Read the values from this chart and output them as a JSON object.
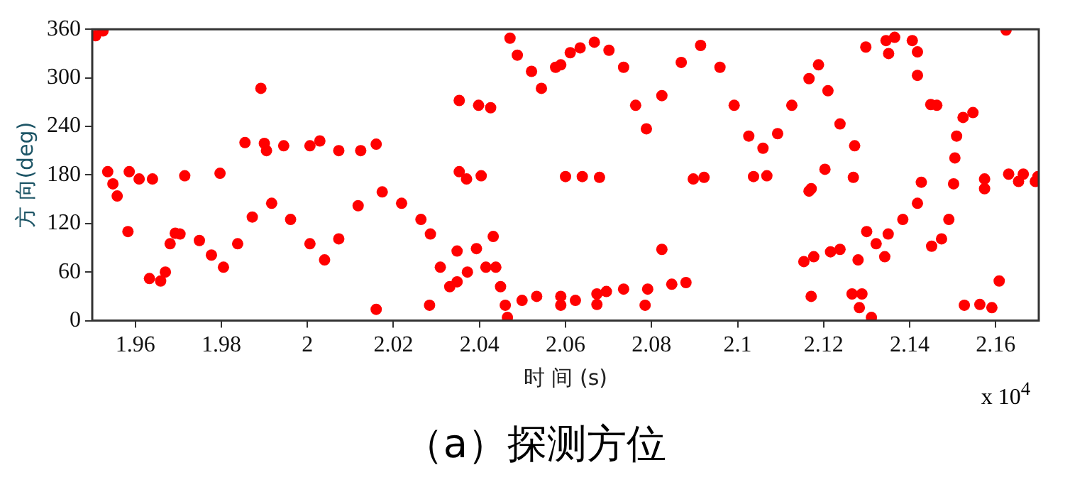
{
  "chart_data": {
    "type": "scatter",
    "xlabel": "时 间 (s)",
    "ylabel": "方 向(deg)",
    "xlim": [
      1.95,
      2.17
    ],
    "ylim": [
      0,
      360
    ],
    "xticks": [
      1.96,
      1.98,
      2,
      2.02,
      2.04,
      2.06,
      2.08,
      2.1,
      2.12,
      2.14,
      2.16
    ],
    "yticks": [
      0,
      60,
      120,
      180,
      240,
      300,
      360
    ],
    "grid": false,
    "legend": false,
    "marker": "circle",
    "annotations": [
      "x 10$^{4}$",
      "（a）探测方位"
    ],
    "series": [
      {
        "color": "#ff0000",
        "x": [
          1.9508,
          1.9525,
          1.9536,
          1.9548,
          1.9558,
          1.9586,
          1.9609,
          1.964,
          1.9715,
          1.9797,
          1.9583,
          1.9633,
          1.9659,
          1.967,
          1.9681,
          1.9693,
          1.9704,
          1.9749,
          1.9777,
          1.9805,
          1.9838,
          1.9872,
          1.9917,
          1.9961,
          2.0006,
          2.004,
          2.0073,
          2.0118,
          2.0174,
          2.0219,
          2.0264,
          2.0286,
          2.0309,
          2.0331,
          2.0348,
          1.9855,
          1.99,
          1.9905,
          1.9945,
          2.0006,
          2.0029,
          2.0073,
          2.0124,
          2.016,
          1.9892,
          2.016,
          2.0284,
          2.0353,
          2.0398,
          2.0426,
          2.0353,
          2.037,
          2.0404,
          2.0348,
          2.0393,
          2.0432,
          2.0372,
          2.0415,
          2.0438,
          2.0449,
          2.046,
          2.0465,
          2.0499,
          2.0533,
          2.0589,
          2.0589,
          2.0471,
          2.0488,
          2.0521,
          2.0544,
          2.0577,
          2.0611,
          2.06,
          2.0589,
          2.0634,
          2.0667,
          2.0701,
          2.0735,
          2.0763,
          2.0788,
          2.0824,
          2.0869,
          2.0914,
          2.0959,
          2.0992,
          2.1026,
          2.1059,
          2.1093,
          2.1126,
          2.1166,
          2.1188,
          2.121,
          2.1238,
          2.1272,
          2.0639,
          2.0679,
          2.0897,
          2.0922,
          2.1037,
          2.1068,
          2.1203,
          2.1269,
          2.1166,
          2.1171,
          2.0623,
          2.0673,
          2.0695,
          2.0673,
          2.0735,
          2.0791,
          2.0785,
          2.0847,
          2.088,
          2.0824,
          2.1154,
          2.1177,
          2.1216,
          2.1238,
          2.128,
          2.1171,
          2.1266,
          2.1289,
          2.1283,
          2.1311,
          2.13,
          2.1322,
          2.135,
          2.1384,
          2.1418,
          2.1342,
          2.1427,
          2.1298,
          2.1345,
          2.1351,
          2.1365,
          2.1406,
          2.1418,
          2.1418,
          2.1449,
          2.1463,
          2.1451,
          2.1474,
          2.1491,
          2.1502,
          2.1505,
          2.1509,
          2.1524,
          2.1547,
          2.1574,
          2.1574,
          2.163,
          2.1653,
          2.1664,
          2.1692,
          2.1698,
          2.1527,
          2.1563,
          2.1591,
          2.1608,
          2.1624
        ],
        "values": [
          352,
          358,
          184,
          169,
          154,
          184,
          175,
          175,
          179,
          182,
          110,
          52,
          49,
          60,
          95,
          108,
          107,
          99,
          81,
          66,
          95,
          128,
          145,
          125,
          95,
          75,
          101,
          142,
          159,
          145,
          125,
          107,
          66,
          42,
          48,
          220,
          219,
          210,
          216,
          216,
          222,
          210,
          210,
          218,
          287,
          14,
          19,
          272,
          266,
          263,
          184,
          175,
          179,
          86,
          89,
          104,
          60,
          66,
          66,
          42,
          19,
          4,
          25,
          30,
          30,
          19,
          349,
          328,
          308,
          287,
          313,
          331,
          178,
          316,
          337,
          344,
          334,
          313,
          266,
          237,
          278,
          319,
          340,
          313,
          266,
          228,
          213,
          231,
          266,
          299,
          316,
          284,
          243,
          216,
          178,
          177,
          175,
          177,
          178,
          179,
          187,
          177,
          160,
          163,
          25,
          33,
          36,
          20,
          39,
          39,
          19,
          45,
          47,
          88,
          73,
          79,
          85,
          88,
          75,
          30,
          33,
          33,
          16,
          4,
          110,
          95,
          107,
          125,
          145,
          79,
          171,
          338,
          346,
          330,
          350,
          346,
          332,
          303,
          267,
          266,
          92,
          101,
          125,
          169,
          201,
          228,
          251,
          257,
          175,
          163,
          181,
          172,
          181,
          172,
          178,
          19,
          20,
          16,
          49,
          359
        ]
      }
    ]
  }
}
